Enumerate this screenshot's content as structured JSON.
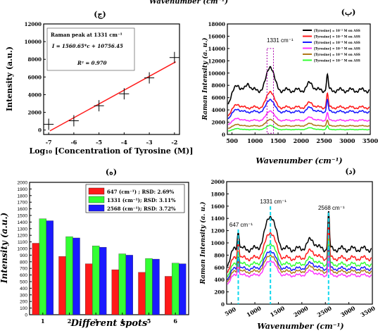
{
  "top_caption": "Wavenumber (cm⁻¹)",
  "colors": {
    "black": "#000000",
    "red": "#ff1a1a",
    "blue": "#1a1aff",
    "magenta": "#ff33ff",
    "olive": "#b07a1a",
    "green": "#33ff33",
    "cyan": "#11d8ee",
    "purple": "#aa00aa"
  },
  "chart_data": [
    {
      "id": "a",
      "panel_label": "(ج)",
      "type": "scatter",
      "xlabel": "Log₁₀ [Concentration of Tyrosine (M)]",
      "ylabel": "Intensity (a.u.)",
      "xlim": [
        -7.2,
        -1.8
      ],
      "ylim": [
        -500,
        12000
      ],
      "xticks": [
        "-7",
        "-6",
        "-5",
        "-4",
        "-3",
        "-2"
      ],
      "yticks": [
        "0",
        "2000",
        "4000",
        "6000",
        "8000",
        "10000",
        "12000"
      ],
      "x": [
        -7,
        -6,
        -5,
        -4,
        -3,
        -2
      ],
      "y": [
        650,
        1050,
        2750,
        4100,
        5900,
        8200
      ],
      "fit": {
        "slope": 1560.65,
        "intercept": 10756.45
      },
      "legend_lines": [
        "Raman peak at 1331 cm⁻¹",
        "I = 1560.65*c + 10756.45",
        "R² = 0.970"
      ]
    },
    {
      "id": "b",
      "panel_label": "(ب)",
      "type": "line",
      "xlabel": "Wavenumber (cm⁻¹)",
      "ylabel": "Raman Intensity (a. u.)",
      "xlim": [
        400,
        3500
      ],
      "ylim": [
        0,
        18000
      ],
      "xticks": [
        "500",
        "1000",
        "1500",
        "2000",
        "2500",
        "3000",
        "3500"
      ],
      "yticks": [
        "0",
        "2000",
        "4000",
        "6000",
        "8000",
        "10000",
        "12000",
        "14000",
        "16000",
        "18000"
      ],
      "annotation": "1331 cm⁻¹",
      "series": [
        {
          "name": "[Tyrosine] = 10⁻² M on ASS",
          "color": "#000000",
          "base": 7200,
          "peaks": [
            [
              620,
              1000,
              60
            ],
            [
              1331,
              4000,
              110
            ],
            [
              850,
              1200,
              60
            ],
            [
              2200,
              1200,
              90
            ],
            [
              2568,
              2400,
              28
            ]
          ]
        },
        {
          "name": "[Tyrosine] = 10⁻³ M on ASS",
          "color": "#ff1a1a",
          "base": 4400,
          "peaks": [
            [
              620,
              600,
              60
            ],
            [
              1331,
              2700,
              110
            ],
            [
              2200,
              800,
              90
            ],
            [
              2568,
              2200,
              28
            ]
          ]
        },
        {
          "name": "[Tyrosine] = 10⁻⁴ M on ASS",
          "color": "#1a1aff",
          "base": 3700,
          "peaks": [
            [
              620,
              500,
              60
            ],
            [
              1331,
              2100,
              110
            ],
            [
              2200,
              700,
              90
            ],
            [
              2568,
              1900,
              28
            ]
          ]
        },
        {
          "name": "[Tyrosine] = 10⁻⁵ M on ASS",
          "color": "#ff33ff",
          "base": 2300,
          "peaks": [
            [
              620,
              400,
              60
            ],
            [
              1331,
              1600,
              110
            ],
            [
              2200,
              500,
              90
            ],
            [
              2568,
              1200,
              28
            ]
          ]
        },
        {
          "name": "[Tyrosine] = 10⁻⁶ M on ASS",
          "color": "#b07a1a",
          "base": 1400,
          "peaks": [
            [
              620,
              300,
              60
            ],
            [
              1331,
              1100,
              110
            ],
            [
              2200,
              400,
              90
            ],
            [
              2568,
              900,
              28
            ]
          ]
        },
        {
          "name": "[Tyrosine] = 10⁻⁷ M on ASS",
          "color": "#33ff33",
          "base": 800,
          "peaks": [
            [
              620,
              200,
              60
            ],
            [
              1331,
              700,
              110
            ],
            [
              2200,
              300,
              90
            ],
            [
              2568,
              600,
              28
            ]
          ]
        }
      ]
    },
    {
      "id": "c",
      "panel_label": "(ه)",
      "type": "bar",
      "xlabel": "Different spots",
      "ylabel": "Intensity (a.u.)",
      "ylim": [
        0,
        2000
      ],
      "categories": [
        "1",
        "2",
        "3",
        "4",
        "5",
        "6"
      ],
      "yticks": [
        "0",
        "100",
        "200",
        "300",
        "400",
        "500",
        "600",
        "700",
        "800",
        "900",
        "1000",
        "1100",
        "1200",
        "1300",
        "1400",
        "1500",
        "1600",
        "1700",
        "1800",
        "1900",
        "2000"
      ],
      "series": [
        {
          "name": "647 (cm⁻¹) ; RSD: 2.69%",
          "color": "#ff1a1a",
          "values": [
            1080,
            880,
            770,
            680,
            640,
            580
          ]
        },
        {
          "name": "1331 (cm⁻¹); RSD: 3.11%",
          "color": "#33ff33",
          "values": [
            1450,
            1180,
            1040,
            920,
            850,
            780
          ]
        },
        {
          "name": "2568 (cm⁻¹);  RSD: 3.72%",
          "color": "#1a1aff",
          "values": [
            1420,
            1160,
            1020,
            900,
            840,
            770
          ]
        }
      ]
    },
    {
      "id": "d",
      "panel_label": "(د)",
      "type": "line",
      "xlabel": "Wavenumber (cm⁻¹)",
      "ylabel": "Raman Intensity (a. u.)",
      "xlim": [
        400,
        3500
      ],
      "ylim": [
        0,
        2000
      ],
      "xticks": [
        "500",
        "1000",
        "1500",
        "2000",
        "2500",
        "3000",
        "3500"
      ],
      "yticks": [
        "0",
        "200",
        "400",
        "600",
        "800",
        "1000",
        "1200",
        "1400",
        "1600",
        "1800",
        "2000"
      ],
      "annotations": [
        {
          "text": "647 cm⁻¹",
          "x": 647
        },
        {
          "text": "1331 cm⁻¹",
          "x": 1331
        },
        {
          "text": "2568 cm⁻¹",
          "x": 2568
        }
      ],
      "series": [
        {
          "color": "#000000",
          "base": 900,
          "peaks": [
            [
              647,
              300,
              30
            ],
            [
              1331,
              550,
              150
            ],
            [
              2200,
              150,
              120
            ],
            [
              2568,
              600,
              25
            ]
          ]
        },
        {
          "color": "#ff1a1a",
          "base": 750,
          "peaks": [
            [
              647,
              250,
              30
            ],
            [
              1331,
              430,
              150
            ],
            [
              2200,
              120,
              120
            ],
            [
              2568,
              500,
              25
            ]
          ]
        },
        {
          "color": "#33ff33",
          "base": 650,
          "peaks": [
            [
              647,
              220,
              30
            ],
            [
              1331,
              350,
              150
            ],
            [
              2200,
              100,
              120
            ],
            [
              2568,
              400,
              25
            ]
          ]
        },
        {
          "color": "#1a1aff",
          "base": 580,
          "peaks": [
            [
              647,
              200,
              30
            ],
            [
              1331,
              300,
              150
            ],
            [
              2200,
              90,
              120
            ],
            [
              2568,
              350,
              25
            ]
          ]
        },
        {
          "color": "#b07a1a",
          "base": 530,
          "peaks": [
            [
              647,
              180,
              30
            ],
            [
              1331,
              280,
              150
            ],
            [
              2200,
              80,
              120
            ],
            [
              2568,
              320,
              25
            ]
          ]
        },
        {
          "color": "#ff33ff",
          "base": 470,
          "peaks": [
            [
              647,
              160,
              30
            ],
            [
              1331,
              250,
              150
            ],
            [
              2200,
              70,
              120
            ],
            [
              2568,
              300,
              25
            ]
          ]
        }
      ]
    }
  ]
}
